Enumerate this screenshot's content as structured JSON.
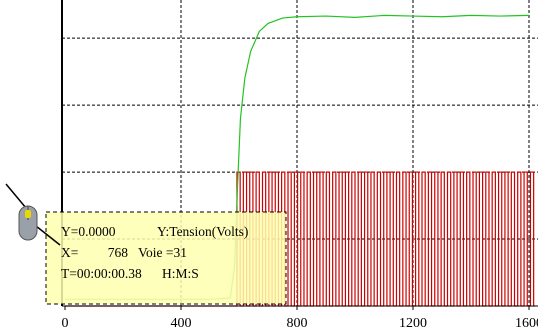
{
  "chart_data": {
    "type": "line",
    "xlim": [
      0,
      1620
    ],
    "ylim": [
      0,
      4.57
    ],
    "xticks": [
      0,
      400,
      800,
      1200,
      1600
    ],
    "yticks": [
      1,
      2,
      3,
      4
    ],
    "ytick_labels": false,
    "grid": true,
    "series": [
      {
        "color": "#cc0000",
        "step": true,
        "x": [
          0,
          593,
          604,
          615,
          626,
          637,
          648,
          659,
          670,
          681,
          692,
          703,
          714,
          725,
          736,
          747,
          758,
          769,
          780,
          791,
          802,
          813,
          824,
          835,
          846,
          857,
          868,
          879,
          890,
          901,
          912,
          923,
          934,
          945,
          956,
          967,
          978,
          989,
          1000,
          1011,
          1022,
          1033,
          1044,
          1055,
          1066,
          1077,
          1088,
          1099,
          1110,
          1121,
          1132,
          1143,
          1154,
          1165,
          1176,
          1187,
          1198,
          1209,
          1220,
          1231,
          1242,
          1253,
          1264,
          1275,
          1286,
          1297,
          1308,
          1319,
          1330,
          1341,
          1352,
          1363,
          1374,
          1385,
          1396,
          1407,
          1418,
          1429,
          1440,
          1451,
          1462,
          1473,
          1484,
          1495,
          1506,
          1517,
          1528,
          1539,
          1550,
          1561,
          1572,
          1583,
          1594,
          1605,
          1616
        ],
        "values": [
          0,
          2,
          0,
          2,
          0,
          2,
          0,
          2,
          0,
          2,
          0,
          2,
          0,
          2,
          0,
          2,
          0,
          2,
          0,
          2,
          0,
          2,
          0,
          2,
          0,
          2,
          0,
          2,
          0,
          2,
          0,
          2,
          0,
          2,
          0,
          2,
          0,
          2,
          0,
          2,
          0,
          2,
          0,
          2,
          0,
          2,
          0,
          2,
          0,
          2,
          0,
          2,
          0,
          2,
          0,
          2,
          0,
          2,
          0,
          2,
          0,
          2,
          0,
          2,
          0,
          2,
          0,
          2,
          0,
          2,
          0,
          2,
          0,
          2,
          0,
          2,
          0,
          2,
          0,
          2,
          0,
          2,
          0,
          2,
          0,
          2,
          0,
          2,
          0,
          2,
          0,
          2,
          0,
          2,
          0
        ]
      },
      {
        "color": "#22c422",
        "step": false,
        "x": [
          0,
          100,
          200,
          300,
          400,
          500,
          570,
          585,
          595,
          605,
          620,
          640,
          670,
          700,
          750,
          800,
          900,
          1000,
          1100,
          1200,
          1300,
          1400,
          1500,
          1600
        ],
        "values": [
          0.1,
          0.1,
          0.1,
          0.1,
          0.1,
          0.1,
          0.12,
          0.6,
          1.8,
          2.8,
          3.4,
          3.8,
          4.1,
          4.22,
          4.3,
          4.32,
          4.33,
          4.31,
          4.34,
          4.33,
          4.32,
          4.34,
          4.33,
          4.34
        ]
      }
    ],
    "tooltip": [
      "Y=0.0000",
      "Y:Tension(Volts)",
      "X=",
      "768",
      "Voie =31",
      "T=00:00:00.38",
      "H:M:S"
    ]
  }
}
